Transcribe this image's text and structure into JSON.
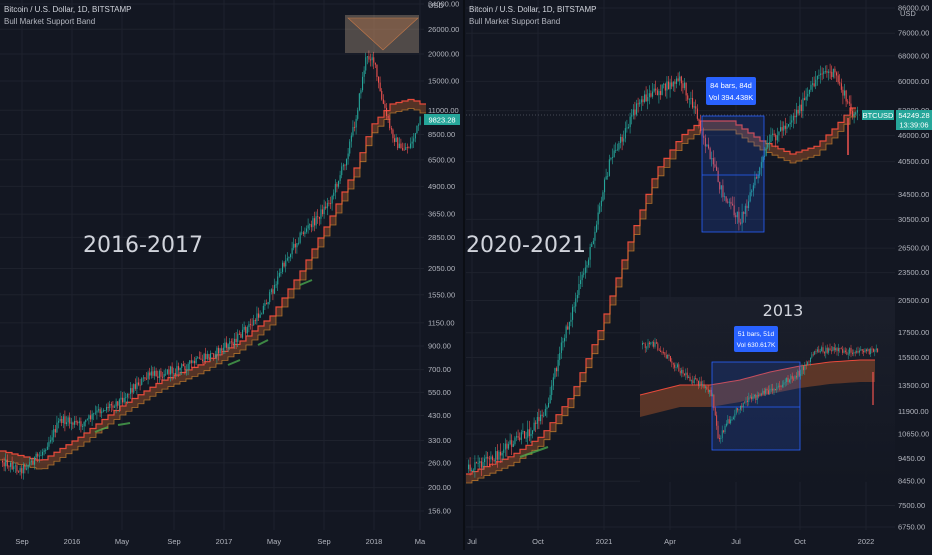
{
  "colors": {
    "bg": "#131722",
    "grid": "#1e222d",
    "up": "#26a69a",
    "down": "#ef5350",
    "band_line": "#e84a3b",
    "band_fill": "#8a4a2a",
    "label_blue": "#2962ff",
    "label_teal": "#26a69a",
    "text": "#d1d4dc"
  },
  "chart_data": [
    {
      "type": "candlestick",
      "symbol_title": "Bitcoin / U.S. Dollar, 1D, BITSTAMP",
      "indicator_title": "Bull Market Support Band",
      "overlay_label": "2016-2017",
      "price_unit": "USD",
      "log_scale": true,
      "y_ticks": [
        156,
        200,
        260,
        330,
        430,
        550,
        700,
        900,
        1150,
        1550,
        2050,
        2850,
        3650,
        4900,
        6500,
        8500,
        11000,
        15000,
        20000,
        26000,
        34000
      ],
      "y_tick_labels": [
        "156.00",
        "200.00",
        "260.00",
        "330.00",
        "430.00",
        "550.00",
        "700.00",
        "900.00",
        "1150.00",
        "1550.00",
        "2050.00",
        "2850.00",
        "3650.00",
        "4900.00",
        "6500.00",
        "8500.00",
        "11000.00",
        "15000.00",
        "20000.00",
        "26000.00",
        "34000.00"
      ],
      "x_ticks": [
        "Sep",
        "2016",
        "May",
        "Sep",
        "2017",
        "May",
        "Sep",
        "2018",
        "Ma"
      ],
      "last_price_label": "9823.28",
      "series": [
        {
          "name": "price",
          "dates": [
            "2015-08",
            "2015-11",
            "2016-01",
            "2016-03",
            "2016-05",
            "2016-07",
            "2016-09",
            "2016-11",
            "2017-01",
            "2017-03",
            "2017-05",
            "2017-07",
            "2017-09",
            "2017-11",
            "2017-12",
            "2018-01",
            "2018-02",
            "2018-03"
          ],
          "values": [
            230,
            330,
            430,
            420,
            450,
            660,
            610,
            730,
            900,
            1100,
            1800,
            2600,
            4200,
            7000,
            19000,
            11000,
            7000,
            9800
          ]
        }
      ],
      "grid": true
    },
    {
      "type": "candlestick",
      "symbol_title": "Bitcoin / U.S. Dollar, 1D, BITSTAMP",
      "indicator_title": "Bull Market Support Band",
      "overlay_label": "2020-2021",
      "price_unit": "USD",
      "log_scale": true,
      "y_ticks": [
        6750,
        7500,
        8450,
        9450,
        10650,
        11900,
        13500,
        15500,
        17500,
        20500,
        23500,
        26500,
        30500,
        34500,
        40500,
        46000,
        52000,
        60000,
        68000,
        76000,
        86000
      ],
      "y_tick_labels": [
        "6750.00",
        "7500.00",
        "8450.00",
        "9450.00",
        "10650.00",
        "11900.00",
        "13500.00",
        "15500.00",
        "17500.00",
        "20500.00",
        "23500.00",
        "26500.00",
        "30500.00",
        "34500.00",
        "40500.00",
        "46000.00",
        "52000.00",
        "60000.00",
        "68000.00",
        "76000.00",
        "86000.00"
      ],
      "x_ticks": [
        "Jul",
        "Oct",
        "2021",
        "Apr",
        "Jul",
        "Oct",
        "2022"
      ],
      "last_price_label": "54249.28",
      "ticker_label": "BTCUSD",
      "countdown_label": "13:39:06",
      "measure_label_1": "84 bars, 84d",
      "measure_label_2": "Vol 394.438K",
      "inset": {
        "title": "2013",
        "measure_label_1": "51 bars, 51d",
        "measure_label_2": "Vol 630.617K"
      },
      "series": [
        {
          "name": "price",
          "dates": [
            "2020-06",
            "2020-08",
            "2020-10",
            "2020-12",
            "2021-01",
            "2021-02",
            "2021-04",
            "2021-05",
            "2021-06",
            "2021-07",
            "2021-09",
            "2021-10",
            "2021-11",
            "2021-12"
          ],
          "values": [
            9300,
            11500,
            12500,
            19000,
            33000,
            48000,
            60000,
            38000,
            33000,
            32000,
            46000,
            60000,
            65000,
            54249
          ]
        }
      ],
      "grid": true
    }
  ]
}
